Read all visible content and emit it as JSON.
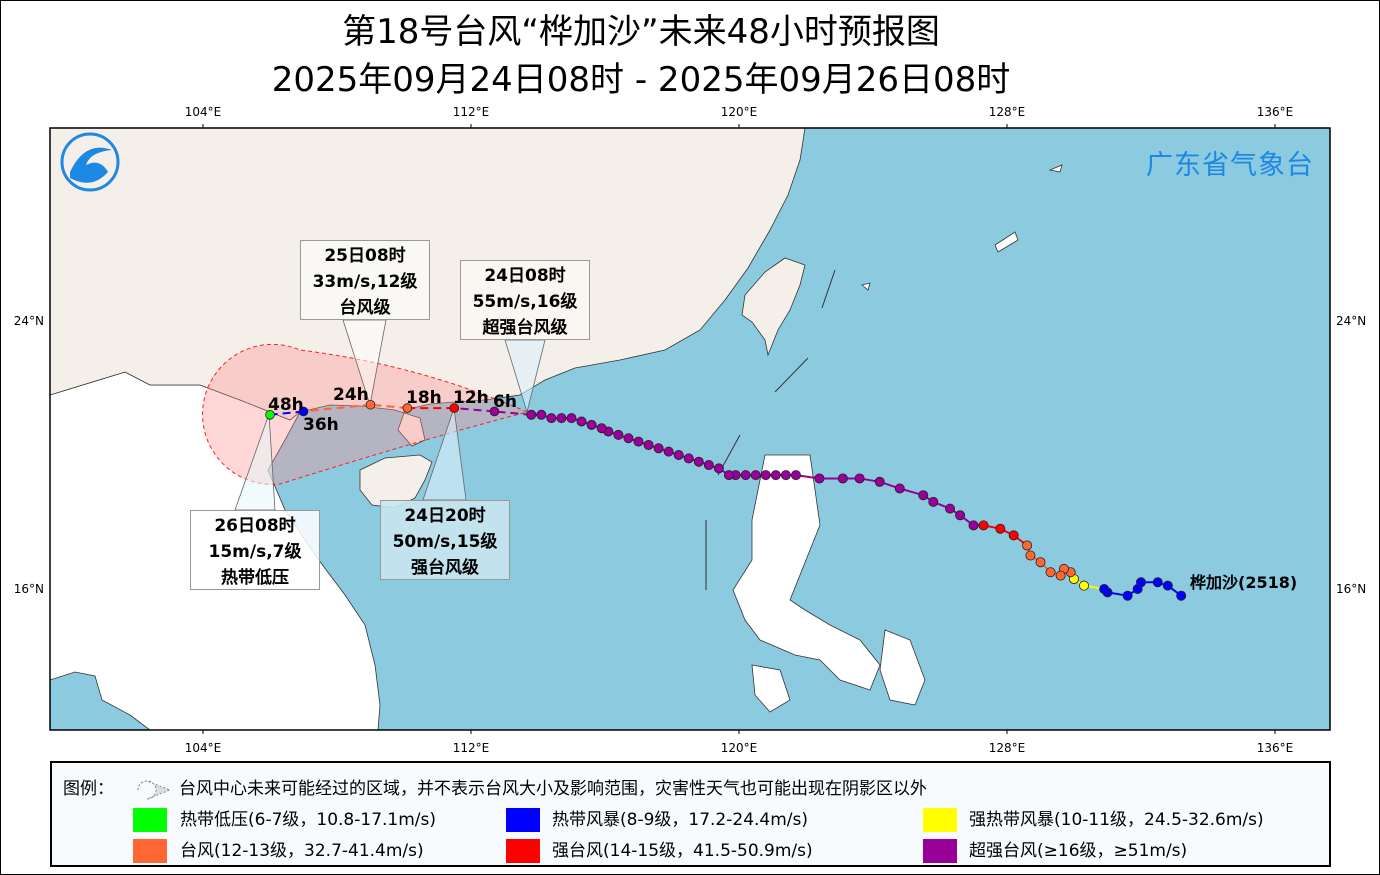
{
  "title": {
    "line1": "第18号台风“桦加沙”未来48小时预报图",
    "line2": "2025年09月24日08时 - 2025年09月26日08时"
  },
  "agency": "广东省气象台",
  "axes": {
    "lon_labels": [
      "104°E",
      "112°E",
      "120°E",
      "128°E",
      "136°E"
    ],
    "lat_labels": [
      "24°N",
      "16°N"
    ],
    "lon_values": [
      104,
      112,
      120,
      128,
      136
    ],
    "lat_values": [
      24,
      16
    ],
    "lon_range": [
      99.5,
      137.6
    ],
    "lat_range": [
      11.6,
      29.6
    ]
  },
  "storm_name": "桦加沙(2518)",
  "category_colors": {
    "TD": "#00ff00",
    "TS": "#0000ff",
    "STS": "#ffff00",
    "TY": "#ff6633",
    "STY": "#ff0000",
    "SuperTY": "#990099"
  },
  "past_track": [
    {
      "lon": 133.2,
      "lat": 15.8,
      "cat": "TS"
    },
    {
      "lon": 132.8,
      "lat": 16.1,
      "cat": "TS"
    },
    {
      "lon": 132.5,
      "lat": 16.2,
      "cat": "TS"
    },
    {
      "lon": 132.0,
      "lat": 16.2,
      "cat": "TS"
    },
    {
      "lon": 131.9,
      "lat": 16.0,
      "cat": "TS"
    },
    {
      "lon": 131.6,
      "lat": 15.8,
      "cat": "TS"
    },
    {
      "lon": 131.0,
      "lat": 15.9,
      "cat": "TS"
    },
    {
      "lon": 130.9,
      "lat": 16.0,
      "cat": "TS"
    },
    {
      "lon": 130.3,
      "lat": 16.1,
      "cat": "STS"
    },
    {
      "lon": 130.0,
      "lat": 16.3,
      "cat": "STS"
    },
    {
      "lon": 129.9,
      "lat": 16.5,
      "cat": "TY"
    },
    {
      "lon": 129.7,
      "lat": 16.6,
      "cat": "TY"
    },
    {
      "lon": 129.6,
      "lat": 16.4,
      "cat": "TY"
    },
    {
      "lon": 129.3,
      "lat": 16.5,
      "cat": "TY"
    },
    {
      "lon": 129.0,
      "lat": 16.8,
      "cat": "TY"
    },
    {
      "lon": 128.7,
      "lat": 17.0,
      "cat": "TY"
    },
    {
      "lon": 128.6,
      "lat": 17.3,
      "cat": "TY"
    },
    {
      "lon": 128.2,
      "lat": 17.6,
      "cat": "STY"
    },
    {
      "lon": 127.8,
      "lat": 17.8,
      "cat": "STY"
    },
    {
      "lon": 127.3,
      "lat": 17.9,
      "cat": "STY"
    },
    {
      "lon": 127.0,
      "lat": 17.9,
      "cat": "SuperTY"
    },
    {
      "lon": 126.6,
      "lat": 18.2,
      "cat": "SuperTY"
    },
    {
      "lon": 126.3,
      "lat": 18.4,
      "cat": "SuperTY"
    },
    {
      "lon": 125.8,
      "lat": 18.6,
      "cat": "SuperTY"
    },
    {
      "lon": 125.5,
      "lat": 18.8,
      "cat": "SuperTY"
    },
    {
      "lon": 124.8,
      "lat": 19.0,
      "cat": "SuperTY"
    },
    {
      "lon": 124.2,
      "lat": 19.2,
      "cat": "SuperTY"
    },
    {
      "lon": 123.6,
      "lat": 19.3,
      "cat": "SuperTY"
    },
    {
      "lon": 123.1,
      "lat": 19.3,
      "cat": "SuperTY"
    },
    {
      "lon": 122.4,
      "lat": 19.3,
      "cat": "SuperTY"
    },
    {
      "lon": 121.7,
      "lat": 19.4,
      "cat": "SuperTY"
    },
    {
      "lon": 121.4,
      "lat": 19.4,
      "cat": "SuperTY"
    },
    {
      "lon": 121.1,
      "lat": 19.4,
      "cat": "SuperTY"
    },
    {
      "lon": 120.8,
      "lat": 19.4,
      "cat": "SuperTY"
    },
    {
      "lon": 120.5,
      "lat": 19.4,
      "cat": "SuperTY"
    },
    {
      "lon": 120.2,
      "lat": 19.4,
      "cat": "SuperTY"
    },
    {
      "lon": 119.9,
      "lat": 19.4,
      "cat": "SuperTY"
    },
    {
      "lon": 119.7,
      "lat": 19.4,
      "cat": "SuperTY"
    },
    {
      "lon": 119.4,
      "lat": 19.6,
      "cat": "SuperTY"
    },
    {
      "lon": 119.1,
      "lat": 19.7,
      "cat": "SuperTY"
    },
    {
      "lon": 118.8,
      "lat": 19.8,
      "cat": "SuperTY"
    },
    {
      "lon": 118.5,
      "lat": 19.9,
      "cat": "SuperTY"
    },
    {
      "lon": 118.2,
      "lat": 20.0,
      "cat": "SuperTY"
    },
    {
      "lon": 117.9,
      "lat": 20.1,
      "cat": "SuperTY"
    },
    {
      "lon": 117.6,
      "lat": 20.2,
      "cat": "SuperTY"
    },
    {
      "lon": 117.3,
      "lat": 20.3,
      "cat": "SuperTY"
    },
    {
      "lon": 117.0,
      "lat": 20.4,
      "cat": "SuperTY"
    },
    {
      "lon": 116.7,
      "lat": 20.5,
      "cat": "SuperTY"
    },
    {
      "lon": 116.4,
      "lat": 20.6,
      "cat": "SuperTY"
    },
    {
      "lon": 116.1,
      "lat": 20.7,
      "cat": "SuperTY"
    },
    {
      "lon": 115.9,
      "lat": 20.8,
      "cat": "SuperTY"
    },
    {
      "lon": 115.6,
      "lat": 20.9,
      "cat": "SuperTY"
    },
    {
      "lon": 115.3,
      "lat": 21.0,
      "cat": "SuperTY"
    },
    {
      "lon": 115.0,
      "lat": 21.1,
      "cat": "SuperTY"
    },
    {
      "lon": 114.7,
      "lat": 21.1,
      "cat": "SuperTY"
    },
    {
      "lon": 114.4,
      "lat": 21.1,
      "cat": "SuperTY"
    },
    {
      "lon": 114.1,
      "lat": 21.2,
      "cat": "SuperTY"
    },
    {
      "lon": 113.8,
      "lat": 21.2,
      "cat": "SuperTY"
    }
  ],
  "forecast_track": [
    {
      "label": "",
      "lon": 113.8,
      "lat": 21.2,
      "cat": "SuperTY"
    },
    {
      "label": "6h",
      "lon": 112.7,
      "lat": 21.3,
      "cat": "SuperTY"
    },
    {
      "label": "12h",
      "lon": 111.5,
      "lat": 21.4,
      "cat": "STY"
    },
    {
      "label": "18h",
      "lon": 110.1,
      "lat": 21.4,
      "cat": "TY"
    },
    {
      "label": "24h",
      "lon": 109.0,
      "lat": 21.5,
      "cat": "TY"
    },
    {
      "label": "36h",
      "lon": 107.0,
      "lat": 21.3,
      "cat": "TS"
    },
    {
      "label": "48h",
      "lon": 106.0,
      "lat": 21.2,
      "cat": "TD"
    }
  ],
  "callouts": [
    {
      "time": "24日08时",
      "wind": "55m/s,16级",
      "level": "超强台风级"
    },
    {
      "time": "24日20时",
      "wind": "50m/s,15级",
      "level": "强台风级"
    },
    {
      "time": "25日08时",
      "wind": "33m/s,12级",
      "level": "台风级"
    },
    {
      "time": "26日08时",
      "wind": "15m/s,7级",
      "level": "热带低压"
    }
  ],
  "legend": {
    "title": "图例：",
    "cone_text": "台风中心未来可能经过的区域，并不表示台风大小及影响范围，灾害性天气也可能出现在阴影区以外",
    "items": [
      {
        "label": "热带低压(6-7级，10.8-17.1m/s)",
        "color": "#00ff00"
      },
      {
        "label": "热带风暴(8-9级，17.2-24.4m/s)",
        "color": "#0000ff"
      },
      {
        "label": "强热带风暴(10-11级，24.5-32.6m/s)",
        "color": "#ffff00"
      },
      {
        "label": "台风(12-13级，32.7-41.4m/s)",
        "color": "#ff6633"
      },
      {
        "label": "强台风(14-15级，41.5-50.9m/s)",
        "color": "#ff0000"
      },
      {
        "label": "超强台风(≥16级，≥51m/s)",
        "color": "#990099"
      }
    ]
  }
}
